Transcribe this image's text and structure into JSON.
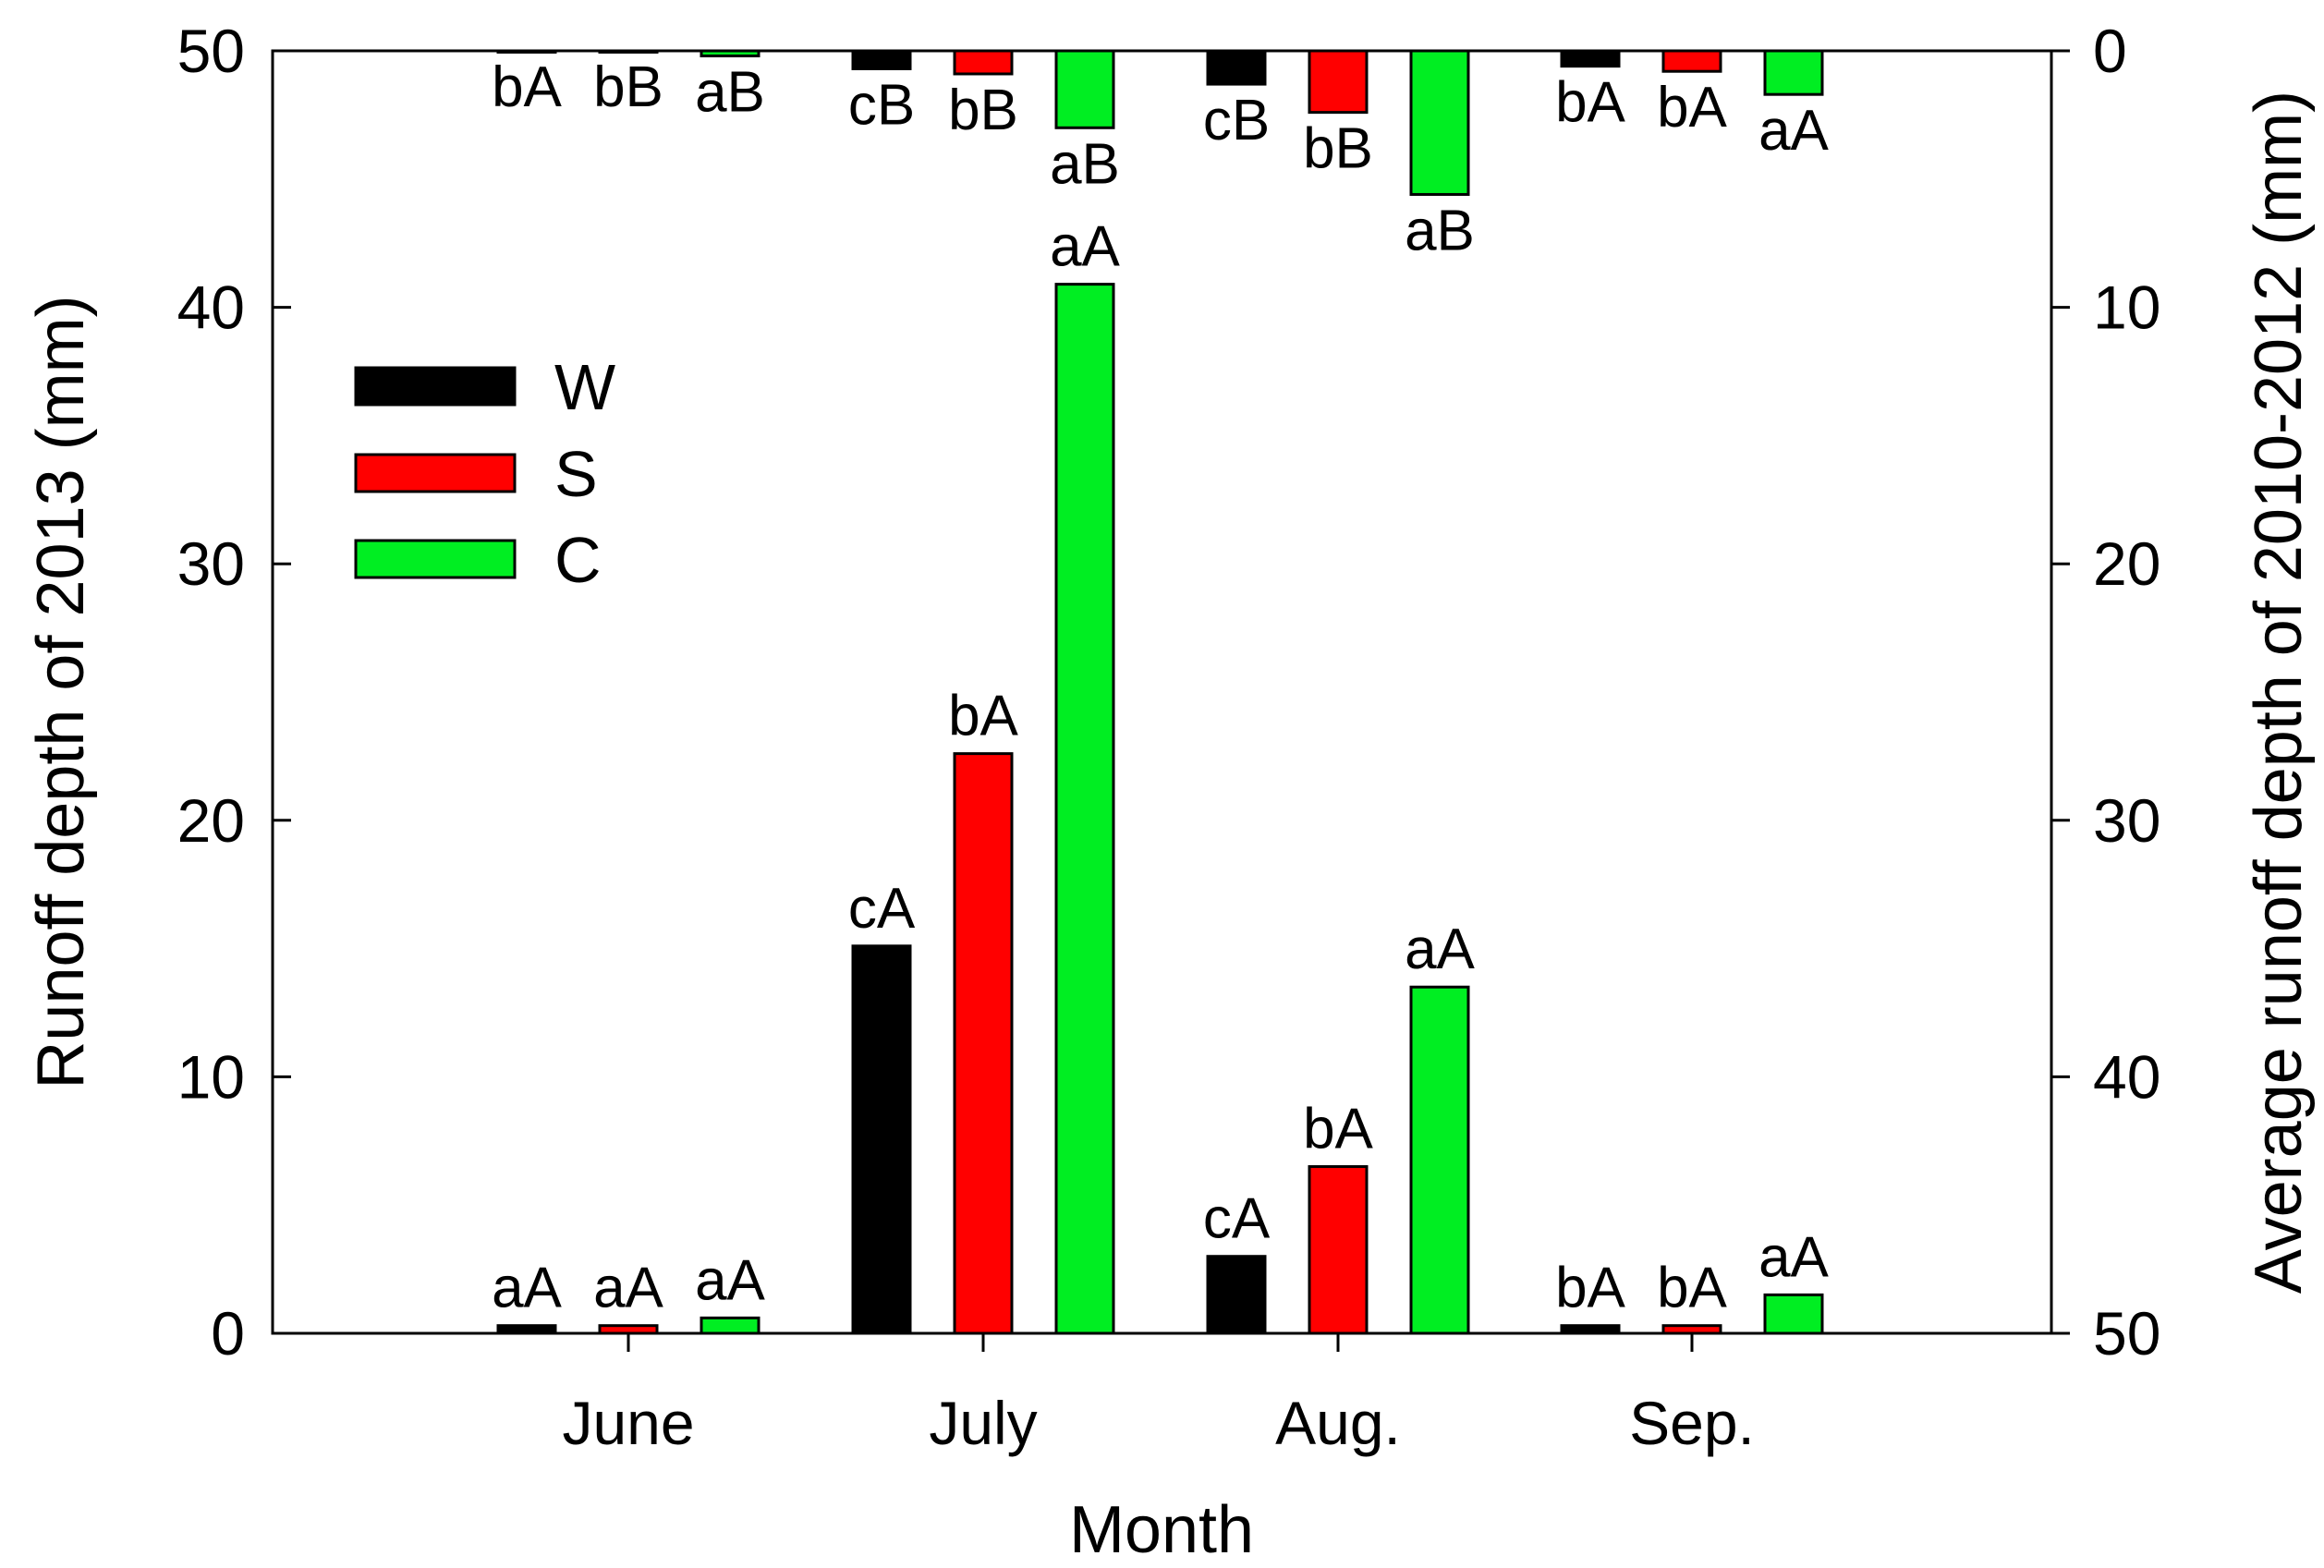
{
  "chart_data": {
    "type": "bar",
    "title": "",
    "xlabel": "Month",
    "ylabel": "Runoff depth of 2013 (mm)",
    "y2label": "Average runoff depth of 2010-2012 (mm)",
    "categories": [
      "June",
      "July",
      "Aug.",
      "Sep."
    ],
    "ylim": [
      0,
      50
    ],
    "y2lim": [
      0,
      50
    ],
    "y2_inverted": true,
    "yticks": [
      "0",
      "10",
      "20",
      "30",
      "40",
      "50"
    ],
    "y2ticks": [
      "0",
      "10",
      "20",
      "30",
      "40",
      "50"
    ],
    "grid": false,
    "legend_position": "upper-left",
    "series": [
      {
        "name": "W",
        "color": "#000000",
        "values_2013": [
          0.3,
          15.1,
          3.0,
          0.3
        ],
        "labels_2013": [
          "aA",
          "cA",
          "cA",
          "bA"
        ],
        "values_2010_2012": [
          0.0,
          0.7,
          1.3,
          0.6
        ],
        "labels_2010_2012": [
          "bA",
          "cB",
          "cB",
          "bA"
        ]
      },
      {
        "name": "S",
        "color": "#ff0000",
        "values_2013": [
          0.3,
          22.6,
          6.5,
          0.3
        ],
        "labels_2013": [
          "aA",
          "bA",
          "bA",
          "bA"
        ],
        "values_2010_2012": [
          0.0,
          0.9,
          2.4,
          0.8
        ],
        "labels_2010_2012": [
          "bB",
          "bB",
          "bB",
          "bA"
        ]
      },
      {
        "name": "C",
        "color": "#00ee22",
        "values_2013": [
          0.6,
          40.9,
          13.5,
          1.5
        ],
        "labels_2013": [
          "aA",
          "aA",
          "aA",
          "aA"
        ],
        "values_2010_2012": [
          0.2,
          3.0,
          5.6,
          1.7
        ],
        "labels_2010_2012": [
          "aB",
          "aB",
          "aB",
          "aA"
        ]
      }
    ]
  }
}
